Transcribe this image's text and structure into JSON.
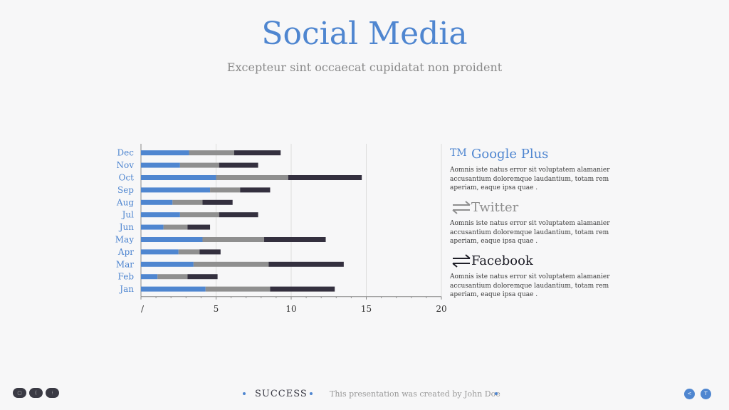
{
  "slide": {
    "title": "Social Media",
    "subtitle": "Excepteur sint occaecat cupidatat non proident"
  },
  "chart_data": {
    "type": "bar",
    "orientation": "horizontal",
    "stacked": true,
    "categories": [
      "Jan",
      "Feb",
      "Mar",
      "Apr",
      "May",
      "Jun",
      "Jul",
      "Aug",
      "Sep",
      "Oct",
      "Nov",
      "Dec"
    ],
    "series": [
      {
        "values": [
          4.3,
          1.1,
          3.5,
          2.5,
          4.1,
          1.5,
          2.6,
          2.1,
          4.6,
          5.0,
          2.6,
          3.2
        ],
        "color": "#4f86d0"
      },
      {
        "values": [
          4.3,
          2.0,
          5.0,
          1.4,
          4.1,
          1.6,
          2.6,
          2.0,
          2.0,
          4.8,
          2.6,
          3.0
        ],
        "color": "#8f8f8f"
      },
      {
        "values": [
          4.3,
          2.0,
          5.0,
          1.4,
          4.1,
          1.5,
          2.6,
          2.0,
          2.0,
          4.9,
          2.6,
          3.1
        ],
        "color": "#34303f"
      }
    ],
    "xlim": [
      0,
      20
    ],
    "xticks": [
      "/",
      "5",
      "10",
      "15",
      "20"
    ],
    "grid": true,
    "legend": "none"
  },
  "socials": [
    {
      "icon": "google-plus-icon",
      "icon_glyph": "TM",
      "name": "Google Plus",
      "color": "#4f86d0",
      "text": "Aomnis iste natus error sit voluptatem alamanier accusantium doloremque laudantium, totam rem aperiam, eaque ipsa quae ."
    },
    {
      "icon": "twitter-icon",
      "icon_glyph": "",
      "name": "Twitter",
      "color": "#8f8f8f",
      "text": "Aomnis iste natus error sit voluptatem alamanier accusantium doloremque laudantium, totam rem aperiam, eaque ipsa quae ."
    },
    {
      "icon": "facebook-icon",
      "icon_glyph": "",
      "name": "Facebook",
      "color": "#1f1f28",
      "text": "Aomnis iste natus error sit voluptatem alamanier accusantium doloremque laudantium, totam rem aperiam, eaque ipsa quae ."
    }
  ],
  "footer": {
    "brand": "SUCCESS",
    "credit": "This presentation was created by John Doe",
    "left_buttons": [
      "▢",
      "(",
      "⁝"
    ],
    "nav_prev": "<",
    "nav_next": "T"
  },
  "colors": {
    "accent": "#4f86d0",
    "grey": "#8f8f8f",
    "dark": "#34303f"
  }
}
